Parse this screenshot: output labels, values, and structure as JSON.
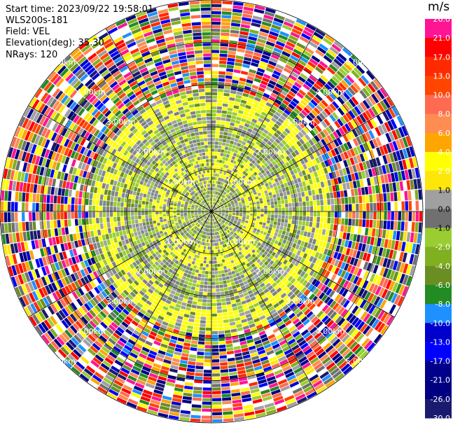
{
  "header": {
    "start_time": "Start time: 2023/09/22 19:58:01",
    "instrument": "WLS200s-181",
    "field": "Field: VEL",
    "elevation": "Elevation(deg): 35.30",
    "nrays": "NRays: 120"
  },
  "colorbar": {
    "unit": "m/s",
    "ticks": [
      "26.0",
      "21.0",
      "17.0",
      "13.0",
      "10.0",
      "8.0",
      "6.0",
      "4.0",
      "2.0",
      "1.0",
      "0.0",
      "-1.0",
      "-2.0",
      "-4.0",
      "-6.0",
      "-8.0",
      "-10.0",
      "-13.0",
      "-17.0",
      "-21.0",
      "-26.0",
      "-30.0"
    ],
    "colors": [
      "#ff1493",
      "#ff0000",
      "#ff2a00",
      "#ff4500",
      "#ff6a50",
      "#ff8c50",
      "#ffa500",
      "#ffff00",
      "#ffe60a",
      "#a0a0a0",
      "#707070",
      "#9acd32",
      "#80b020",
      "#6b8e23",
      "#228b22",
      "#1e90ff",
      "#0000cd",
      "#0000ff",
      "#00008b",
      "#000080",
      "#1a1a6e"
    ]
  },
  "chart_data": {
    "type": "ppi",
    "field": "VEL",
    "units": "m/s",
    "nrays": 120,
    "elevation_deg": 35.3,
    "range_rings_km": [
      1.0,
      2.0,
      3.0,
      4.0,
      5.0
    ],
    "range_labels": [
      "1.00km",
      "2.00km",
      "3.00km",
      "4.00km",
      "5.00km"
    ],
    "vmin": -30.0,
    "vmax": 26.0,
    "inner_pattern": "near-zero velocities (grey/yellow/green) within ~3 km",
    "outer_pattern": "noisy aliased velocities beyond ~3 km"
  }
}
